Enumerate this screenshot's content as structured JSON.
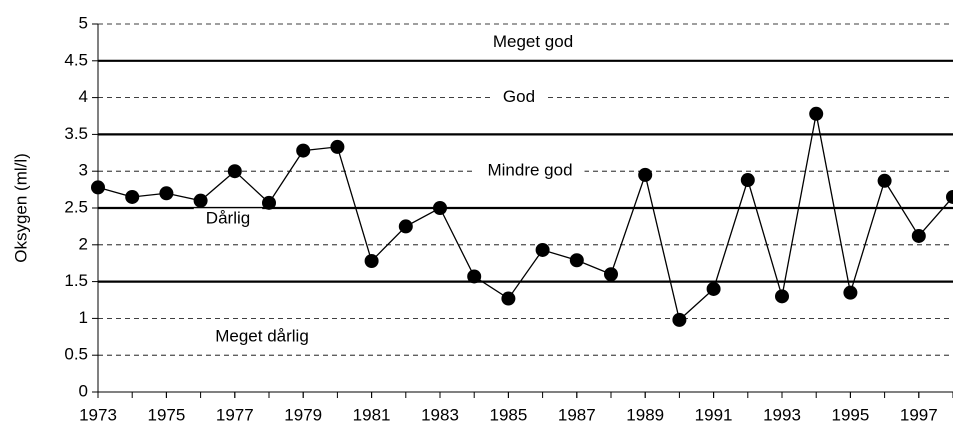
{
  "chart_data": {
    "type": "line",
    "y_label": "Oksygen (ml/l)",
    "x": [
      1973,
      1974,
      1975,
      1976,
      1977,
      1978,
      1979,
      1980,
      1981,
      1982,
      1983,
      1984,
      1985,
      1986,
      1987,
      1988,
      1989,
      1990,
      1991,
      1992,
      1993,
      1994,
      1995,
      1996,
      1997,
      1998
    ],
    "series": [
      {
        "color": "#000000",
        "values": [
          2.78,
          2.65,
          2.7,
          2.6,
          3.0,
          2.57,
          3.28,
          3.33,
          1.78,
          2.25,
          2.5,
          1.57,
          1.27,
          1.93,
          1.79,
          1.6,
          2.95,
          0.98,
          1.4,
          2.88,
          1.3,
          3.78,
          1.35,
          2.87,
          2.12,
          2.65
        ]
      }
    ],
    "xlim": [
      1973,
      1998
    ],
    "xticks": [
      1973,
      1975,
      1977,
      1979,
      1981,
      1983,
      1985,
      1987,
      1989,
      1991,
      1993,
      1995,
      1997
    ],
    "ylim": [
      0,
      5
    ],
    "yticks": [
      0,
      0.5,
      1,
      1.5,
      2,
      2.5,
      3,
      3.5,
      4,
      4.5,
      5
    ],
    "grid": true,
    "thresholds": [
      1.5,
      2.5,
      3.5,
      4.5
    ],
    "zones": [
      {
        "label": "Meget dårlig",
        "from": 0,
        "to": 1.5
      },
      {
        "label": "Dårlig",
        "from": 1.5,
        "to": 2.5
      },
      {
        "label": "Mindre god",
        "from": 2.5,
        "to": 3.5
      },
      {
        "label": "God",
        "from": 3.5,
        "to": 4.5
      },
      {
        "label": "Meget god",
        "from": 4.5,
        "to": 5
      }
    ]
  }
}
